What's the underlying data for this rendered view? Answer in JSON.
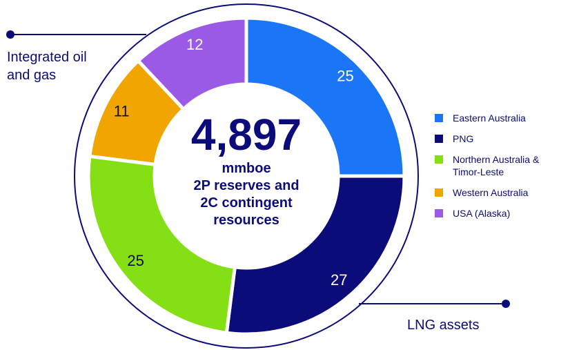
{
  "chart_data": {
    "type": "donut",
    "title": "4,897",
    "subtitle_lines": [
      "mmboe",
      "2P reserves and",
      "2C contingent",
      "resources"
    ],
    "categories": [
      "Eastern Australia",
      "PNG",
      "Northern Australia & Timor-Leste",
      "Western Australia",
      "USA (Alaska)"
    ],
    "values": [
      25,
      27,
      25,
      11,
      12
    ],
    "colors": [
      "#1a75f7",
      "#0b0b7a",
      "#84e014",
      "#f0a500",
      "#9b5ae6"
    ],
    "label_colors": [
      "#ffffff",
      "#ffffff",
      "#0b0b3a",
      "#0b0b3a",
      "#ffffff"
    ],
    "annotations": [
      "Integrated oil and gas",
      "LNG assets"
    ]
  }
}
